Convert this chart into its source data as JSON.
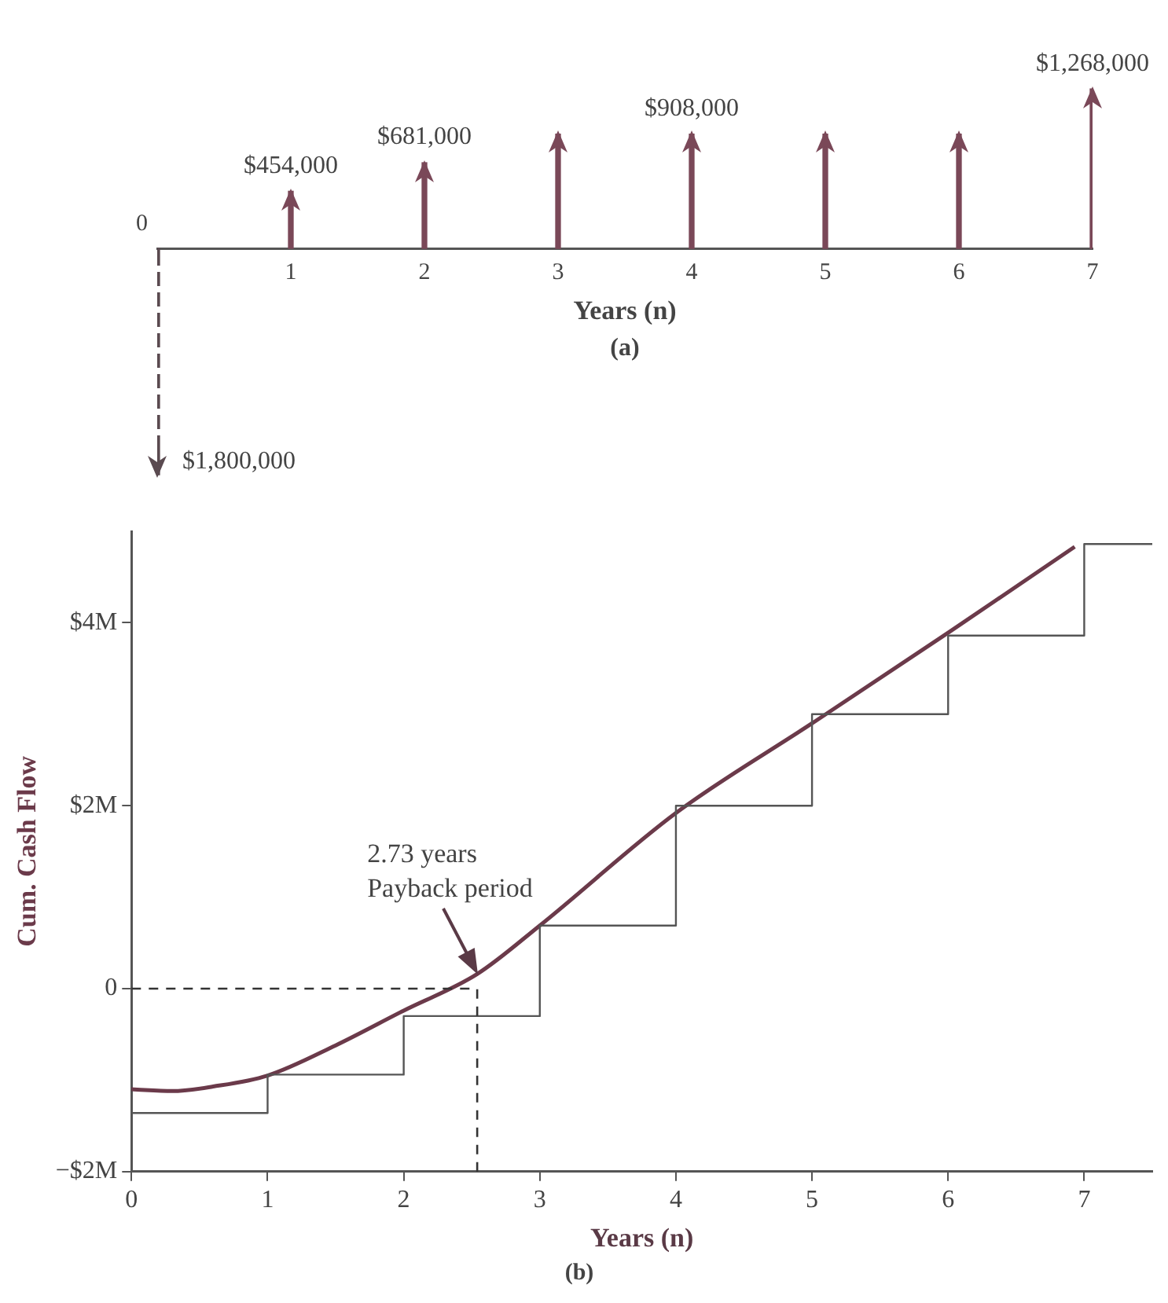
{
  "chart_data": [
    {
      "type": "bar",
      "title": "(a)",
      "xlabel": "Years (n)",
      "categories": [
        "0",
        "1",
        "2",
        "3",
        "4",
        "5",
        "6",
        "7"
      ],
      "tick_labels": "x",
      "grid": false,
      "legend": false,
      "series": [
        {
          "color": "#5a4a50",
          "line_style": "dashed",
          "values": [
            -1800000,
            null,
            null,
            null,
            null,
            null,
            null,
            null
          ]
        },
        {
          "color": "#7a4858",
          "line_style": "solid",
          "values": [
            null,
            454000,
            681000,
            908000,
            908000,
            908000,
            908000,
            1268000
          ],
          "value_labels": [
            null,
            "$454,000",
            "$681,000",
            null,
            "$908,000",
            null,
            null,
            "$1,268,000"
          ]
        }
      ],
      "annotations": [
        "$1,800,000"
      ]
    },
    {
      "type": "line",
      "title": "(b)",
      "xlabel": "Years (n)",
      "ylabel": "Cum. Cash Flow",
      "xlim": [
        0,
        7.5
      ],
      "xticks": [
        0,
        1,
        2,
        3,
        4,
        5,
        6,
        7
      ],
      "ylim": [
        -2,
        5
      ],
      "yticks": [
        {
          "value": -2,
          "label": "−$2M"
        },
        0,
        {
          "value": 2,
          "label": "$2M"
        },
        {
          "value": 4,
          "label": "$4M"
        }
      ],
      "grid": false,
      "legend": false,
      "series": [
        {
          "type": "step",
          "color": "#555555",
          "x": [
            0,
            1,
            2,
            3,
            4,
            5,
            6,
            7,
            7.5
          ],
          "values": [
            -1.36,
            -0.94,
            -0.3,
            0.69,
            2.0,
            3.0,
            3.86,
            4.86,
            4.86
          ]
        },
        {
          "type": "line",
          "color": "#6b3a4a",
          "x": [
            0,
            0.3,
            0.6,
            1,
            1.5,
            2,
            2.54,
            3,
            4,
            5,
            6,
            6.93
          ],
          "values": [
            -1.1,
            -1.12,
            -1.07,
            -0.95,
            -0.62,
            -0.24,
            0.16,
            0.69,
            1.92,
            2.9,
            3.89,
            4.83
          ]
        }
      ],
      "ref_lines": [
        {
          "axis": "y",
          "value": 0,
          "line_style": "dashed"
        },
        {
          "axis": "x",
          "value": 2.54,
          "line_style": "dashed"
        }
      ],
      "annotations": [
        {
          "text": "2.73 years\nPayback period",
          "x": 2.54,
          "y": 0.16
        }
      ]
    }
  ]
}
